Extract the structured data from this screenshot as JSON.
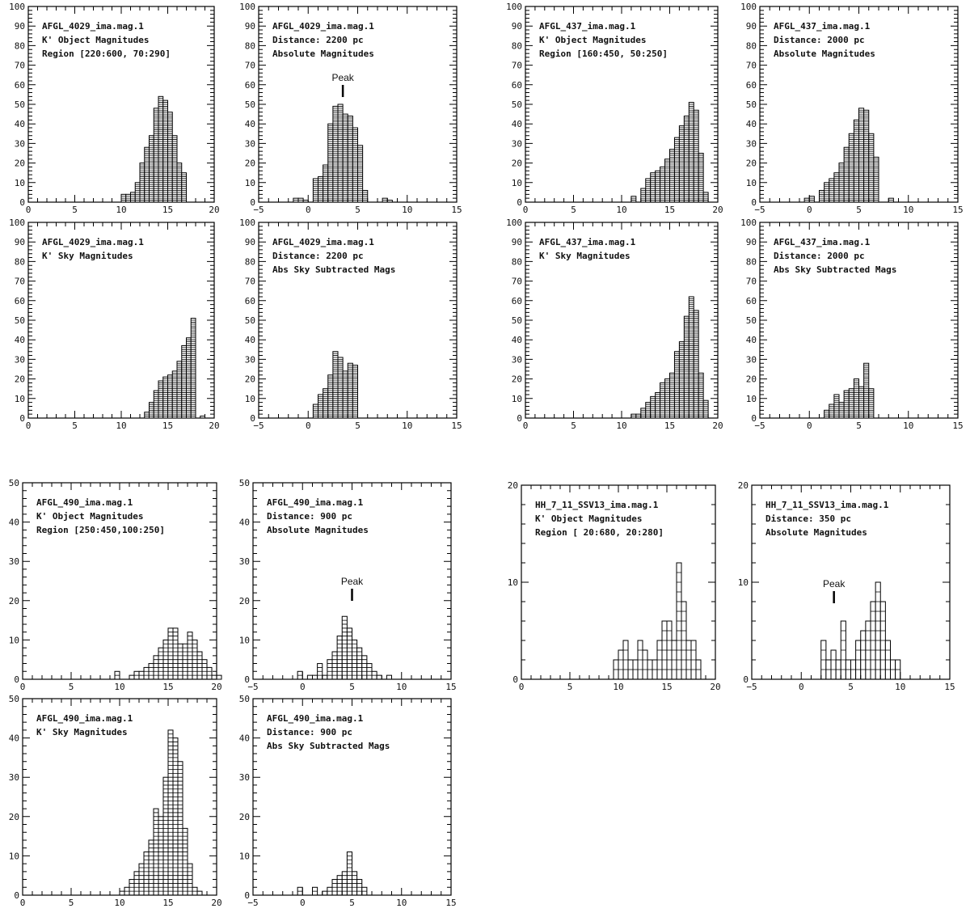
{
  "chart_data": [
    {
      "type": "bar",
      "lines": [
        "AFGL_4029_ima.mag.1",
        "K' Object Magnitudes",
        "Region [220:600, 70:290]"
      ],
      "xlim": [
        0,
        20
      ],
      "ylim": [
        0,
        100
      ],
      "x_ticks": [
        "0",
        "5",
        "10",
        "15",
        "20"
      ],
      "y_ticks": [
        "0",
        "10",
        "20",
        "30",
        "40",
        "50",
        "60",
        "70",
        "80",
        "90",
        "100"
      ],
      "bin_width": 0.5,
      "bin_start": 10,
      "values": [
        4,
        4,
        5,
        10,
        20,
        28,
        34,
        48,
        54,
        52,
        46,
        34,
        20,
        15
      ]
    },
    {
      "type": "bar",
      "lines": [
        "AFGL_4029_ima.mag.1",
        "Distance: 2200  pc",
        "Absolute Magnitudes"
      ],
      "peak_label": "Peak",
      "peak_x": 3.5,
      "xlim": [
        -5,
        15
      ],
      "ylim": [
        0,
        100
      ],
      "x_ticks": [
        "−5",
        "0",
        "5",
        "10",
        "15"
      ],
      "y_ticks": [
        "0",
        "10",
        "20",
        "30",
        "40",
        "50",
        "60",
        "70",
        "80",
        "90",
        "100"
      ],
      "bin_width": 0.5,
      "bin_start": -1.5,
      "values": [
        2,
        2,
        1,
        0,
        12,
        13,
        19,
        40,
        49,
        50,
        45,
        44,
        38,
        29,
        6,
        0,
        0,
        0,
        2,
        1
      ]
    },
    {
      "type": "bar",
      "lines": [
        "AFGL_437_ima.mag.1",
        "K' Object Magnitudes",
        "Region [160:450, 50:250]"
      ],
      "xlim": [
        0,
        20
      ],
      "ylim": [
        0,
        100
      ],
      "x_ticks": [
        "0",
        "5",
        "10",
        "15",
        "20"
      ],
      "y_ticks": [
        "0",
        "10",
        "20",
        "30",
        "40",
        "50",
        "60",
        "70",
        "80",
        "90",
        "100"
      ],
      "bin_width": 0.5,
      "bin_start": 11,
      "values": [
        3,
        0,
        7,
        12,
        15,
        16,
        18,
        22,
        27,
        33,
        39,
        44,
        51,
        47,
        25,
        5
      ]
    },
    {
      "type": "bar",
      "lines": [
        "AFGL_437_ima.mag.1",
        "Distance: 2000  pc",
        "Absolute Magnitudes"
      ],
      "xlim": [
        -5,
        15
      ],
      "ylim": [
        0,
        100
      ],
      "x_ticks": [
        "−5",
        "0",
        "5",
        "10",
        "15"
      ],
      "y_ticks": [
        "0",
        "10",
        "20",
        "30",
        "40",
        "50",
        "60",
        "70",
        "80",
        "90",
        "100"
      ],
      "bin_width": 0.5,
      "bin_start": -0.5,
      "values": [
        2,
        3,
        0,
        6,
        10,
        12,
        15,
        20,
        28,
        35,
        42,
        48,
        47,
        35,
        23,
        0,
        0,
        2
      ]
    },
    {
      "type": "bar",
      "lines": [
        "AFGL_4029_ima.mag.1",
        "K' Sky Magnitudes"
      ],
      "xlim": [
        0,
        20
      ],
      "ylim": [
        0,
        100
      ],
      "x_ticks": [
        "0",
        "5",
        "10",
        "15",
        "20"
      ],
      "y_ticks": [
        "0",
        "10",
        "20",
        "30",
        "40",
        "50",
        "60",
        "70",
        "80",
        "90",
        "100"
      ],
      "bin_width": 0.5,
      "bin_start": 12.5,
      "values": [
        3,
        8,
        14,
        19,
        21,
        22,
        24,
        29,
        37,
        41,
        51,
        0,
        1
      ]
    },
    {
      "type": "bar",
      "lines": [
        "AFGL_4029_ima.mag.1",
        "Distance: 2200  pc",
        "Abs Sky Subtracted Mags"
      ],
      "xlim": [
        -5,
        15
      ],
      "ylim": [
        0,
        100
      ],
      "x_ticks": [
        "−5",
        "0",
        "5",
        "10",
        "15"
      ],
      "y_ticks": [
        "0",
        "10",
        "20",
        "30",
        "40",
        "50",
        "60",
        "70",
        "80",
        "90",
        "100"
      ],
      "bin_width": 0.5,
      "bin_start": 0.5,
      "values": [
        7,
        12,
        15,
        22,
        34,
        31,
        24,
        28,
        27
      ]
    },
    {
      "type": "bar",
      "lines": [
        "AFGL_437_ima.mag.1",
        "K' Sky Magnitudes"
      ],
      "xlim": [
        0,
        20
      ],
      "ylim": [
        0,
        100
      ],
      "x_ticks": [
        "0",
        "5",
        "10",
        "15",
        "20"
      ],
      "y_ticks": [
        "0",
        "10",
        "20",
        "30",
        "40",
        "50",
        "60",
        "70",
        "80",
        "90",
        "100"
      ],
      "bin_width": 0.5,
      "bin_start": 11,
      "values": [
        2,
        2,
        5,
        8,
        11,
        13,
        18,
        20,
        23,
        34,
        39,
        52,
        62,
        55,
        23,
        9
      ]
    },
    {
      "type": "bar",
      "lines": [
        "AFGL_437_ima.mag.1",
        "Distance: 2000  pc",
        "Abs Sky Subtracted Mags"
      ],
      "xlim": [
        -5,
        15
      ],
      "ylim": [
        0,
        100
      ],
      "x_ticks": [
        "−5",
        "0",
        "5",
        "10",
        "15"
      ],
      "y_ticks": [
        "0",
        "10",
        "20",
        "30",
        "40",
        "50",
        "60",
        "70",
        "80",
        "90",
        "100"
      ],
      "bin_width": 0.5,
      "bin_start": 1.5,
      "values": [
        4,
        7,
        12,
        8,
        14,
        15,
        20,
        16,
        28,
        15
      ]
    },
    {
      "type": "bar",
      "lines": [
        "AFGL_490_ima.mag.1",
        "K' Object Magnitudes",
        "Region [250:450,100:250]"
      ],
      "xlim": [
        0,
        20
      ],
      "ylim": [
        0,
        50
      ],
      "x_ticks": [
        "0",
        "5",
        "10",
        "15",
        "20"
      ],
      "y_ticks": [
        "0",
        "10",
        "20",
        "30",
        "40",
        "50"
      ],
      "bin_width": 0.5,
      "bin_start": 9.5,
      "values": [
        2,
        0,
        0,
        1,
        2,
        2,
        3,
        4,
        6,
        8,
        10,
        13,
        13,
        9,
        9,
        12,
        10,
        7,
        5,
        3,
        1,
        1
      ]
    },
    {
      "type": "bar",
      "lines": [
        "AFGL_490_ima.mag.1",
        "Distance: 900   pc",
        "Absolute Magnitudes"
      ],
      "peak_label": "Peak",
      "peak_x": 5,
      "xlim": [
        -5,
        15
      ],
      "ylim": [
        0,
        50
      ],
      "x_ticks": [
        "−5",
        "0",
        "5",
        "10",
        "15"
      ],
      "y_ticks": [
        "0",
        "10",
        "20",
        "30",
        "40",
        "50"
      ],
      "bin_width": 0.5,
      "bin_start": -0.5,
      "values": [
        2,
        0,
        1,
        1,
        4,
        1,
        5,
        7,
        11,
        16,
        13,
        10,
        8,
        6,
        4,
        2,
        1,
        0,
        1
      ]
    },
    {
      "type": "bar",
      "lines": [
        "HH_7_11_SSV13_ima.mag.1",
        "K' Object Magnitudes",
        "Region [ 20:680, 20:280]"
      ],
      "xlim": [
        0,
        20
      ],
      "ylim": [
        0,
        20
      ],
      "x_ticks": [
        "0",
        "5",
        "10",
        "15",
        "20"
      ],
      "y_ticks": [
        "0",
        "10",
        "20"
      ],
      "bin_width": 0.5,
      "bin_start": 9.5,
      "values": [
        2,
        3,
        4,
        2,
        2,
        4,
        3,
        2,
        2,
        4,
        6,
        6,
        4,
        12,
        8,
        4,
        4,
        2
      ]
    },
    {
      "type": "bar",
      "lines": [
        "HH_7_11_SSV13_ima.mag.1",
        "Distance: 350   pc",
        "Absolute Magnitudes"
      ],
      "peak_label": "Peak",
      "peak_x": 3.3,
      "xlim": [
        -5,
        15
      ],
      "ylim": [
        0,
        20
      ],
      "x_ticks": [
        "−5",
        "0",
        "5",
        "10",
        "15"
      ],
      "y_ticks": [
        "0",
        "10",
        "20"
      ],
      "bin_width": 0.5,
      "bin_start": 2,
      "values": [
        4,
        2,
        3,
        2,
        6,
        2,
        2,
        4,
        5,
        6,
        8,
        10,
        8,
        4,
        2,
        2
      ]
    },
    {
      "type": "bar",
      "lines": [
        "AFGL_490_ima.mag.1",
        "K' Sky Magnitudes"
      ],
      "xlim": [
        0,
        20
      ],
      "ylim": [
        0,
        50
      ],
      "x_ticks": [
        "0",
        "5",
        "10",
        "15",
        "20"
      ],
      "y_ticks": [
        "0",
        "10",
        "20",
        "30",
        "40",
        "50"
      ],
      "bin_width": 0.5,
      "bin_start": 10,
      "values": [
        1,
        2,
        4,
        6,
        8,
        11,
        14,
        22,
        20,
        30,
        42,
        40,
        34,
        17,
        8,
        2,
        1
      ]
    },
    {
      "type": "bar",
      "lines": [
        "AFGL_490_ima.mag.1",
        "Distance: 900   pc",
        "Abs Sky Subtracted Mags"
      ],
      "xlim": [
        -5,
        15
      ],
      "ylim": [
        0,
        50
      ],
      "x_ticks": [
        "−5",
        "0",
        "5",
        "10",
        "15"
      ],
      "y_ticks": [
        "0",
        "10",
        "20",
        "30",
        "40",
        "50"
      ],
      "bin_width": 0.5,
      "bin_start": -0.5,
      "values": [
        2,
        0,
        0,
        2,
        0,
        1,
        2,
        4,
        5,
        6,
        11,
        6,
        4,
        2
      ]
    }
  ]
}
